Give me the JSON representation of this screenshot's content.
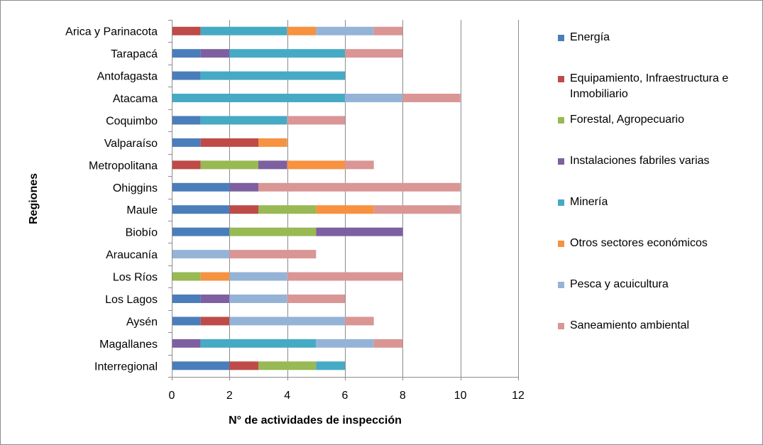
{
  "chart_data": {
    "type": "bar",
    "orientation": "horizontal",
    "stacked": true,
    "title": "",
    "xlabel": "N° de actividades de inspección",
    "ylabel": "Regiones",
    "xlim": [
      0,
      12
    ],
    "xticks": [
      "0",
      "2",
      "4",
      "6",
      "8",
      "10",
      "12"
    ],
    "grid": "vertical",
    "legend_position": "right",
    "categories": [
      "Arica y Parinacota",
      "Tarapacá",
      "Antofagasta",
      "Atacama",
      "Coquimbo",
      "Valparaíso",
      "Metropolitana",
      "Ohiggins",
      "Maule",
      "Biobío",
      "Araucanía",
      "Los Ríos",
      "Los Lagos",
      "Aysén",
      "Magallanes",
      "Interregional"
    ],
    "series": [
      {
        "name": "Energía",
        "color": "#4a7ebb",
        "values": [
          0,
          1,
          1,
          0,
          1,
          1,
          0,
          2,
          2,
          2,
          0,
          0,
          1,
          1,
          0,
          2
        ]
      },
      {
        "name": "Equipamiento, Infraestructura e Inmobiliario",
        "color": "#be4b48",
        "values": [
          1,
          0,
          0,
          0,
          0,
          2,
          1,
          0,
          1,
          0,
          0,
          0,
          0,
          1,
          0,
          1
        ]
      },
      {
        "name": "Forestal, Agropecuario",
        "color": "#98b954",
        "values": [
          0,
          0,
          0,
          0,
          0,
          0,
          2,
          0,
          2,
          3,
          0,
          1,
          0,
          0,
          0,
          2
        ]
      },
      {
        "name": "Instalaciones fabriles varias",
        "color": "#7d60a0",
        "values": [
          0,
          1,
          0,
          0,
          0,
          0,
          1,
          1,
          0,
          3,
          0,
          0,
          1,
          0,
          1,
          0
        ]
      },
      {
        "name": "Minería",
        "color": "#46aac5",
        "values": [
          3,
          4,
          5,
          6,
          3,
          0,
          0,
          0,
          0,
          0,
          0,
          0,
          0,
          0,
          4,
          1
        ]
      },
      {
        "name": "Otros sectores económicos",
        "color": "#f69240",
        "values": [
          1,
          0,
          0,
          0,
          0,
          1,
          2,
          0,
          2,
          0,
          0,
          1,
          0,
          0,
          0,
          0
        ]
      },
      {
        "name": "Pesca y acuicultura",
        "color": "#95b3d7",
        "values": [
          2,
          0,
          0,
          2,
          0,
          0,
          0,
          0,
          0,
          0,
          2,
          2,
          2,
          4,
          2,
          0
        ]
      },
      {
        "name": "Saneamiento ambiental",
        "color": "#d99694",
        "values": [
          1,
          2,
          0,
          2,
          2,
          0,
          1,
          7,
          3,
          0,
          3,
          4,
          2,
          1,
          1,
          0
        ]
      }
    ]
  }
}
